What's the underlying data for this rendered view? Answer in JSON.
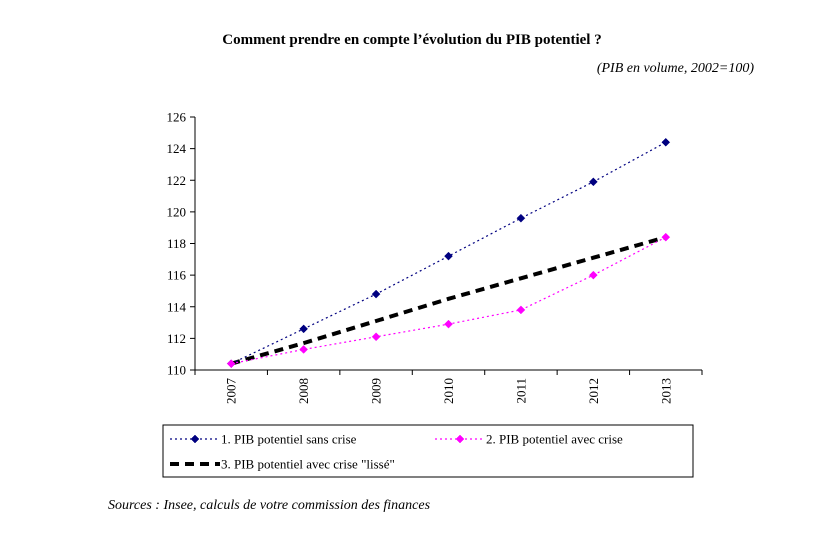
{
  "chart_data": {
    "type": "line",
    "title": "Comment prendre en compte l’évolution du PIB potentiel ?",
    "subtitle": "(PIB en volume, 2002=100)",
    "categories": [
      "2007",
      "2008",
      "2009",
      "2010",
      "2011",
      "2012",
      "2013"
    ],
    "ylim": [
      110,
      126
    ],
    "yticks": [
      110,
      112,
      114,
      116,
      118,
      120,
      122,
      124,
      126
    ],
    "series": [
      {
        "name": "1. PIB potentiel sans crise",
        "values": [
          110.4,
          112.6,
          114.8,
          117.2,
          119.6,
          121.9,
          124.4
        ],
        "color": "#000080",
        "style": "dotted",
        "marker": "diamond"
      },
      {
        "name": "2. PIB potentiel avec crise",
        "values": [
          110.4,
          111.3,
          112.1,
          112.9,
          113.8,
          116.0,
          118.4
        ],
        "color": "#FF00FF",
        "style": "dotted",
        "marker": "diamond"
      },
      {
        "name": "3. PIB potentiel avec crise \"lissé\"",
        "values": [
          110.4,
          111.7,
          113.1,
          114.5,
          115.8,
          117.1,
          118.4
        ],
        "color": "#000000",
        "style": "thick-dashed",
        "marker": "none"
      }
    ],
    "legend_position": "bottom",
    "source": "Sources : Insee, calculs de votre commission des finances"
  }
}
